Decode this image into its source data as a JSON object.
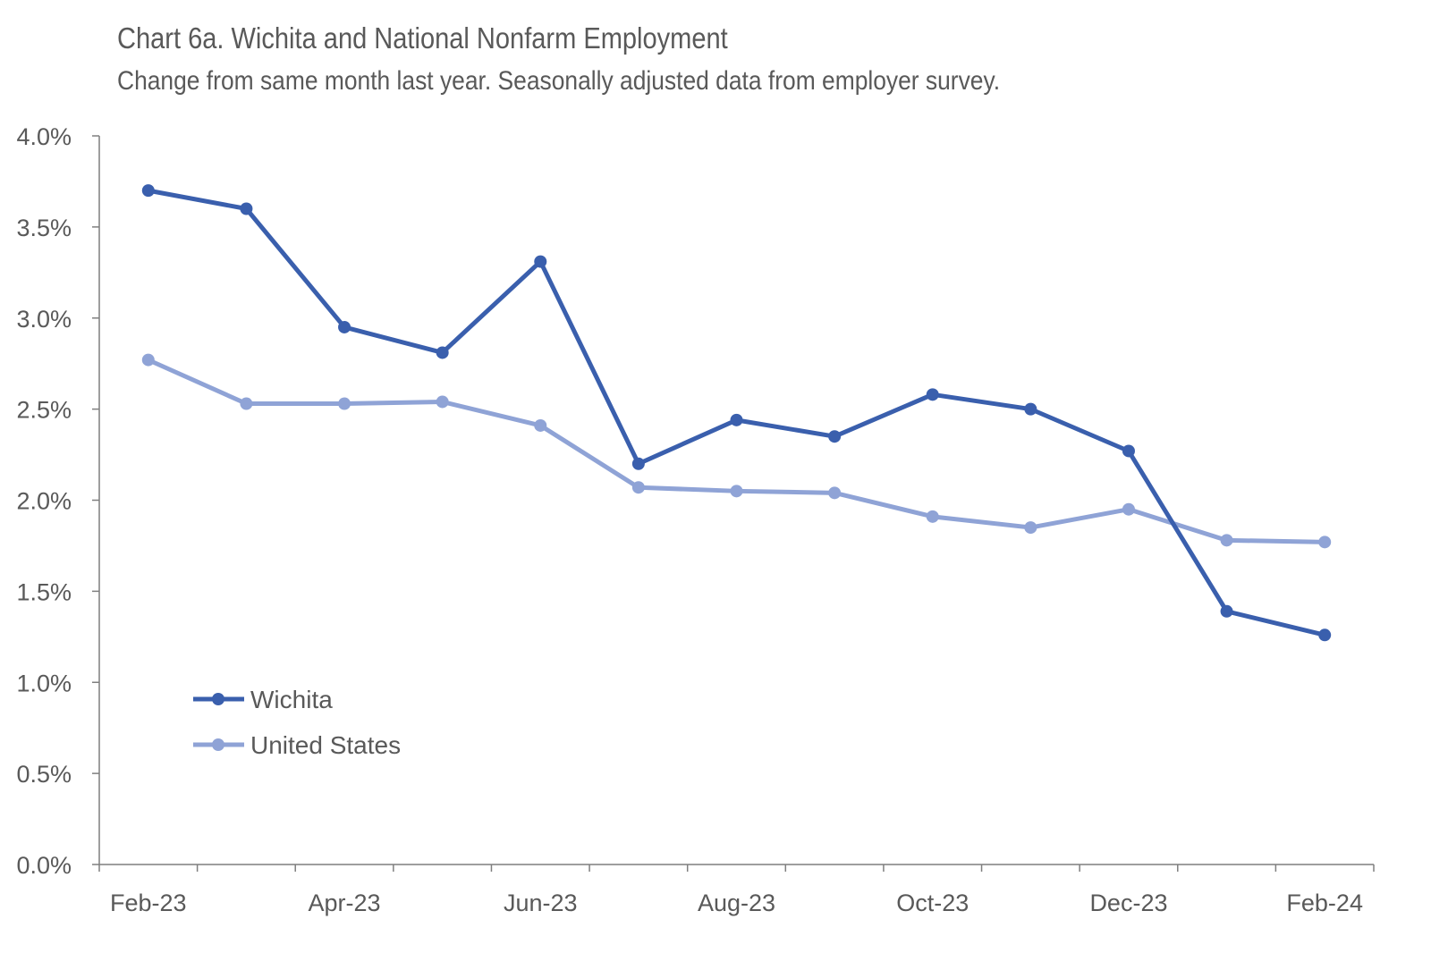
{
  "chart_data": {
    "type": "line",
    "title": "Chart 6a. Wichita and National Nonfarm Employment",
    "subtitle": "Change from same month last year. Seasonally adjusted data from employer survey.",
    "xlabel": "",
    "ylabel": "",
    "x": [
      "Feb-23",
      "Mar-23",
      "Apr-23",
      "May-23",
      "Jun-23",
      "Jul-23",
      "Aug-23",
      "Sep-23",
      "Oct-23",
      "Nov-23",
      "Dec-23",
      "Jan-24",
      "Feb-24"
    ],
    "x_tick_labels": [
      "Feb-23",
      "",
      "Apr-23",
      "",
      "Jun-23",
      "",
      "Aug-23",
      "",
      "Oct-23",
      "",
      "Dec-23",
      "",
      "Feb-24"
    ],
    "y_tick_labels": [
      "0.0%",
      "0.5%",
      "1.0%",
      "1.5%",
      "2.0%",
      "2.5%",
      "3.0%",
      "3.5%",
      "4.0%"
    ],
    "ylim": [
      0,
      4.0
    ],
    "grid": false,
    "legend_position": "bottom-left",
    "series": [
      {
        "name": "Wichita",
        "color": "#3a5fad",
        "values": [
          3.7,
          3.6,
          2.95,
          2.81,
          3.31,
          2.2,
          2.44,
          2.35,
          2.58,
          2.5,
          2.27,
          1.39,
          1.26
        ]
      },
      {
        "name": "United States",
        "color": "#8fa3d6",
        "values": [
          2.77,
          2.53,
          2.53,
          2.54,
          2.41,
          2.07,
          2.05,
          2.04,
          1.91,
          1.85,
          1.95,
          1.78,
          1.77
        ]
      }
    ]
  }
}
